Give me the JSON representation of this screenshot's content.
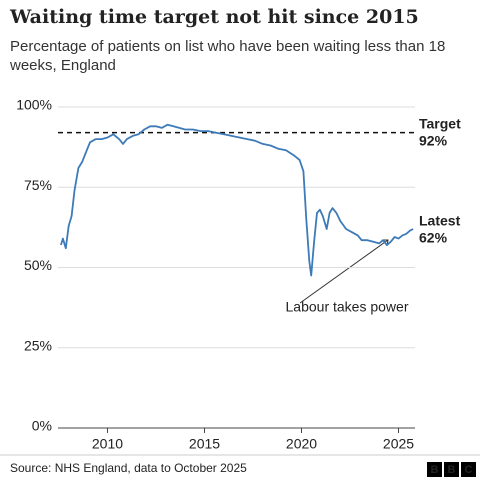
{
  "chart_data": {
    "type": "line",
    "title": "Waiting time target not hit since 2015",
    "subtitle": "Percentage of patients on list who have been waiting less than 18 weeks, England",
    "x": [
      2007.6,
      2007.7,
      2007.85,
      2008.0,
      2008.15,
      2008.3,
      2008.5,
      2008.7,
      2008.9,
      2009.1,
      2009.4,
      2009.7,
      2010.0,
      2010.3,
      2010.6,
      2010.8,
      2011.0,
      2011.3,
      2011.6,
      2011.9,
      2012.2,
      2012.5,
      2012.8,
      2013.1,
      2013.4,
      2013.7,
      2014.0,
      2014.4,
      2014.8,
      2015.2,
      2015.6,
      2016.0,
      2016.4,
      2016.8,
      2017.2,
      2017.6,
      2018.0,
      2018.4,
      2018.8,
      2019.2,
      2019.6,
      2019.9,
      2020.1,
      2020.25,
      2020.4,
      2020.5,
      2020.65,
      2020.8,
      2020.95,
      2021.1,
      2021.3,
      2021.45,
      2021.6,
      2021.8,
      2022.0,
      2022.3,
      2022.6,
      2022.9,
      2023.1,
      2023.4,
      2023.7,
      2024.0,
      2024.2,
      2024.4,
      2024.6,
      2024.8,
      2025.0,
      2025.2,
      2025.4,
      2025.6,
      2025.75
    ],
    "values": [
      57,
      59,
      56,
      63,
      66,
      74,
      81,
      83,
      86,
      89,
      90,
      90,
      90.5,
      91.5,
      90,
      88.5,
      90,
      91,
      91.5,
      93,
      94,
      94,
      93.5,
      94.5,
      94,
      93.5,
      93,
      93,
      92.5,
      92.5,
      92,
      91.5,
      91,
      90.5,
      90,
      89.5,
      88.5,
      88,
      87,
      86.5,
      85,
      83.5,
      80,
      65,
      52,
      47.5,
      58,
      67,
      68,
      66,
      62,
      67,
      68.5,
      67,
      64.5,
      62,
      61,
      60,
      58.5,
      58.5,
      58,
      57.5,
      58.5,
      57,
      58,
      59.5,
      59,
      60,
      60.5,
      61.5,
      62
    ],
    "color": "#3d7ab8",
    "xlim": [
      2007.45,
      2025.85
    ],
    "xticks": [
      2010,
      2015,
      2020,
      2025
    ],
    "ylim": [
      0,
      100
    ],
    "yticks": [
      {
        "value": 0,
        "label": "0%"
      },
      {
        "value": 25,
        "label": "25%"
      },
      {
        "value": 50,
        "label": "50%"
      },
      {
        "value": 75,
        "label": "75%"
      },
      {
        "value": 100,
        "label": "100%"
      }
    ],
    "grid": true,
    "target": 92,
    "target_label": [
      "Target",
      "92%"
    ],
    "latest_label": [
      "Latest",
      "62%"
    ],
    "annotation": "Labour takes power",
    "source": "Source: NHS England, data to October 2025",
    "logo": [
      "B",
      "B",
      "C"
    ]
  }
}
